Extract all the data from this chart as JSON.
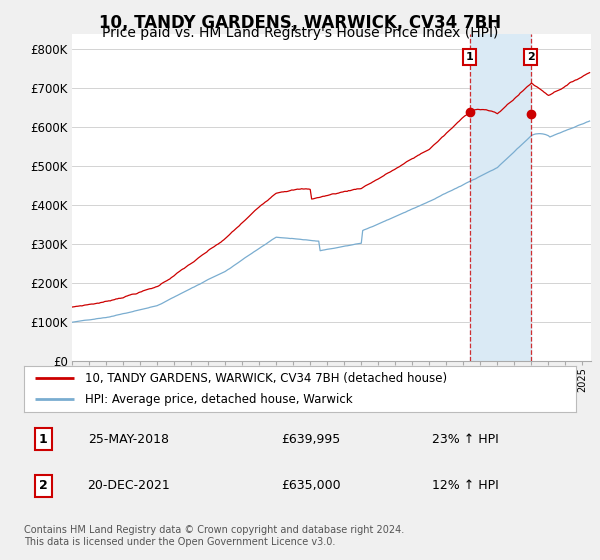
{
  "title": "10, TANDY GARDENS, WARWICK, CV34 7BH",
  "subtitle": "Price paid vs. HM Land Registry's House Price Index (HPI)",
  "title_fontsize": 12,
  "subtitle_fontsize": 10,
  "ylabel_ticks": [
    "£0",
    "£100K",
    "£200K",
    "£300K",
    "£400K",
    "£500K",
    "£600K",
    "£700K",
    "£800K"
  ],
  "ytick_values": [
    0,
    100000,
    200000,
    300000,
    400000,
    500000,
    600000,
    700000,
    800000
  ],
  "ylim": [
    0,
    840000
  ],
  "xlim_start": 1995.0,
  "xlim_end": 2025.5,
  "red_line_color": "#cc0000",
  "blue_line_color": "#7aadd0",
  "shade_color": "#daeaf5",
  "marker1_date": 2018.38,
  "marker1_value": 639995,
  "marker2_date": 2021.95,
  "marker2_value": 635000,
  "vline1_x": 2018.38,
  "vline2_x": 2021.95,
  "legend_label_red": "10, TANDY GARDENS, WARWICK, CV34 7BH (detached house)",
  "legend_label_blue": "HPI: Average price, detached house, Warwick",
  "annotation1_num": "1",
  "annotation1_date": "25-MAY-2018",
  "annotation1_price": "£639,995",
  "annotation1_hpi": "23% ↑ HPI",
  "annotation2_num": "2",
  "annotation2_date": "20-DEC-2021",
  "annotation2_price": "£635,000",
  "annotation2_hpi": "12% ↑ HPI",
  "footnote": "Contains HM Land Registry data © Crown copyright and database right 2024.\nThis data is licensed under the Open Government Licence v3.0.",
  "bg_color": "#f0f0f0",
  "plot_bg_color": "#ffffff",
  "grid_color": "#cccccc"
}
